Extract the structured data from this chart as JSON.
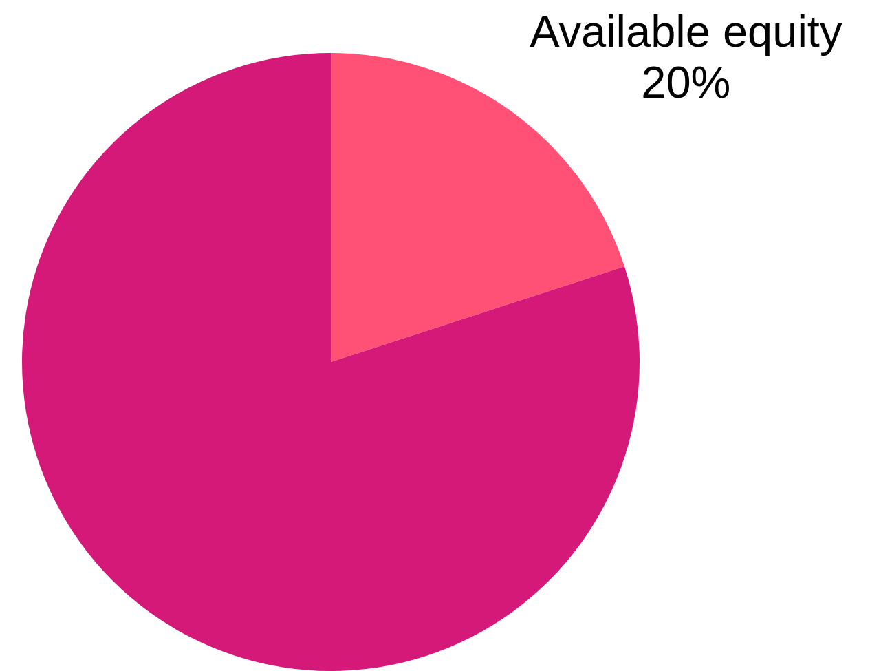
{
  "chart_data": {
    "type": "pie",
    "categories": [
      "Available equity",
      null
    ],
    "values": [
      20,
      80
    ],
    "colors": [
      "#ff5075",
      "#d41978"
    ],
    "value_labels": [
      "20%",
      null
    ]
  }
}
